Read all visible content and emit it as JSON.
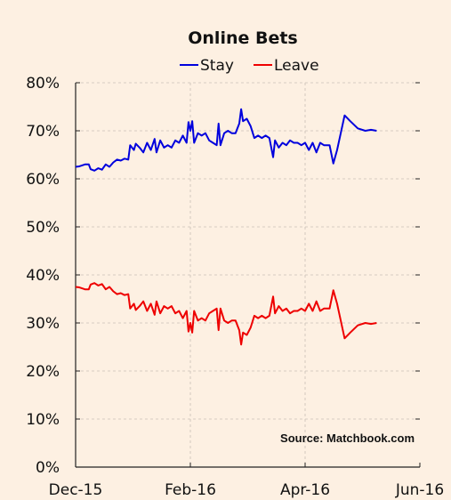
{
  "chart_data": {
    "type": "line",
    "title": "Online Bets",
    "annotation": "Source: Matchbook.com",
    "xlabel": "",
    "ylabel": "",
    "x_ticks": [
      "Dec-15",
      "Feb-16",
      "Apr-16",
      "Jun-16"
    ],
    "y_ticks": [
      "0%",
      "10%",
      "20%",
      "30%",
      "40%",
      "50%",
      "60%",
      "70%",
      "80%"
    ],
    "xlim": [
      "2015-12-01",
      "2016-06-01"
    ],
    "ylim": [
      0,
      80
    ],
    "grid": true,
    "legend_position": "top-center",
    "series": [
      {
        "name": "Stay",
        "color": "#0000dd",
        "points": [
          [
            "2015-12-01",
            62.5
          ],
          [
            "2015-12-03",
            62.6
          ],
          [
            "2015-12-06",
            63.0
          ],
          [
            "2015-12-08",
            63.0
          ],
          [
            "2015-12-09",
            62.0
          ],
          [
            "2015-12-11",
            61.7
          ],
          [
            "2015-12-13",
            62.2
          ],
          [
            "2015-12-15",
            61.9
          ],
          [
            "2015-12-17",
            63.0
          ],
          [
            "2015-12-19",
            62.5
          ],
          [
            "2015-12-21",
            63.4
          ],
          [
            "2015-12-23",
            64.0
          ],
          [
            "2015-12-25",
            63.8
          ],
          [
            "2015-12-27",
            64.2
          ],
          [
            "2015-12-29",
            64.0
          ],
          [
            "2015-12-30",
            67.0
          ],
          [
            "2016-01-01",
            66.0
          ],
          [
            "2016-01-02",
            67.3
          ],
          [
            "2016-01-04",
            66.5
          ],
          [
            "2016-01-06",
            65.5
          ],
          [
            "2016-01-08",
            67.5
          ],
          [
            "2016-01-10",
            66.0
          ],
          [
            "2016-01-12",
            68.3
          ],
          [
            "2016-01-13",
            65.5
          ],
          [
            "2016-01-15",
            68.0
          ],
          [
            "2016-01-17",
            66.5
          ],
          [
            "2016-01-19",
            67.0
          ],
          [
            "2016-01-21",
            66.5
          ],
          [
            "2016-01-23",
            68.0
          ],
          [
            "2016-01-25",
            67.5
          ],
          [
            "2016-01-27",
            69.0
          ],
          [
            "2016-01-29",
            67.5
          ],
          [
            "2016-01-30",
            71.8
          ],
          [
            "2016-01-31",
            70.0
          ],
          [
            "2016-02-01",
            72.0
          ],
          [
            "2016-02-02",
            67.5
          ],
          [
            "2016-02-04",
            69.5
          ],
          [
            "2016-02-06",
            69.0
          ],
          [
            "2016-02-08",
            69.5
          ],
          [
            "2016-02-10",
            68.0
          ],
          [
            "2016-02-12",
            67.5
          ],
          [
            "2016-02-14",
            67.0
          ],
          [
            "2016-02-15",
            71.5
          ],
          [
            "2016-02-16",
            67.0
          ],
          [
            "2016-02-18",
            69.5
          ],
          [
            "2016-02-20",
            70.0
          ],
          [
            "2016-02-22",
            69.5
          ],
          [
            "2016-02-24",
            69.5
          ],
          [
            "2016-02-26",
            71.5
          ],
          [
            "2016-02-27",
            74.5
          ],
          [
            "2016-02-28",
            72.0
          ],
          [
            "2016-03-01",
            72.5
          ],
          [
            "2016-03-03",
            71.0
          ],
          [
            "2016-03-05",
            68.5
          ],
          [
            "2016-03-07",
            69.0
          ],
          [
            "2016-03-09",
            68.5
          ],
          [
            "2016-03-11",
            69.0
          ],
          [
            "2016-03-13",
            68.5
          ],
          [
            "2016-03-15",
            64.5
          ],
          [
            "2016-03-16",
            68.0
          ],
          [
            "2016-03-18",
            66.5
          ],
          [
            "2016-03-20",
            67.5
          ],
          [
            "2016-03-22",
            67.0
          ],
          [
            "2016-03-24",
            68.0
          ],
          [
            "2016-03-26",
            67.5
          ],
          [
            "2016-03-28",
            67.5
          ],
          [
            "2016-03-30",
            67.0
          ],
          [
            "2016-04-01",
            67.5
          ],
          [
            "2016-04-03",
            66.0
          ],
          [
            "2016-04-05",
            67.5
          ],
          [
            "2016-04-07",
            65.5
          ],
          [
            "2016-04-09",
            67.5
          ],
          [
            "2016-04-11",
            67.0
          ],
          [
            "2016-04-14",
            67.0
          ],
          [
            "2016-04-16",
            63.2
          ],
          [
            "2016-04-18",
            66.0
          ],
          [
            "2016-04-22",
            73.2
          ],
          [
            "2016-04-25",
            72.0
          ],
          [
            "2016-04-29",
            70.5
          ],
          [
            "2016-05-03",
            70.0
          ],
          [
            "2016-05-06",
            70.2
          ],
          [
            "2016-05-09",
            70.0
          ]
        ]
      },
      {
        "name": "Leave",
        "color": "#ee0000",
        "points": [
          [
            "2015-12-01",
            37.5
          ],
          [
            "2015-12-03",
            37.4
          ],
          [
            "2015-12-06",
            37.0
          ],
          [
            "2015-12-08",
            37.0
          ],
          [
            "2015-12-09",
            38.0
          ],
          [
            "2015-12-11",
            38.3
          ],
          [
            "2015-12-13",
            37.8
          ],
          [
            "2015-12-15",
            38.1
          ],
          [
            "2015-12-17",
            37.0
          ],
          [
            "2015-12-19",
            37.5
          ],
          [
            "2015-12-21",
            36.6
          ],
          [
            "2015-12-23",
            36.0
          ],
          [
            "2015-12-25",
            36.2
          ],
          [
            "2015-12-27",
            35.8
          ],
          [
            "2015-12-29",
            36.0
          ],
          [
            "2015-12-30",
            33.0
          ],
          [
            "2016-01-01",
            34.0
          ],
          [
            "2016-01-02",
            32.7
          ],
          [
            "2016-01-04",
            33.5
          ],
          [
            "2016-01-06",
            34.5
          ],
          [
            "2016-01-08",
            32.5
          ],
          [
            "2016-01-10",
            34.0
          ],
          [
            "2016-01-12",
            31.7
          ],
          [
            "2016-01-13",
            34.5
          ],
          [
            "2016-01-15",
            32.0
          ],
          [
            "2016-01-17",
            33.5
          ],
          [
            "2016-01-19",
            33.0
          ],
          [
            "2016-01-21",
            33.5
          ],
          [
            "2016-01-23",
            32.0
          ],
          [
            "2016-01-25",
            32.5
          ],
          [
            "2016-01-27",
            31.0
          ],
          [
            "2016-01-29",
            32.5
          ],
          [
            "2016-01-30",
            28.2
          ],
          [
            "2016-01-31",
            30.0
          ],
          [
            "2016-02-01",
            28.0
          ],
          [
            "2016-02-02",
            32.5
          ],
          [
            "2016-02-04",
            30.5
          ],
          [
            "2016-02-06",
            31.0
          ],
          [
            "2016-02-08",
            30.5
          ],
          [
            "2016-02-10",
            32.0
          ],
          [
            "2016-02-12",
            32.5
          ],
          [
            "2016-02-14",
            33.0
          ],
          [
            "2016-02-15",
            28.5
          ],
          [
            "2016-02-16",
            33.0
          ],
          [
            "2016-02-18",
            30.5
          ],
          [
            "2016-02-20",
            30.0
          ],
          [
            "2016-02-22",
            30.5
          ],
          [
            "2016-02-24",
            30.5
          ],
          [
            "2016-02-26",
            28.5
          ],
          [
            "2016-02-27",
            25.5
          ],
          [
            "2016-02-28",
            28.0
          ],
          [
            "2016-03-01",
            27.5
          ],
          [
            "2016-03-03",
            29.0
          ],
          [
            "2016-03-05",
            31.5
          ],
          [
            "2016-03-07",
            31.0
          ],
          [
            "2016-03-09",
            31.5
          ],
          [
            "2016-03-11",
            31.0
          ],
          [
            "2016-03-13",
            31.5
          ],
          [
            "2016-03-15",
            35.5
          ],
          [
            "2016-03-16",
            32.0
          ],
          [
            "2016-03-18",
            33.5
          ],
          [
            "2016-03-20",
            32.5
          ],
          [
            "2016-03-22",
            33.0
          ],
          [
            "2016-03-24",
            32.0
          ],
          [
            "2016-03-26",
            32.5
          ],
          [
            "2016-03-28",
            32.5
          ],
          [
            "2016-03-30",
            33.0
          ],
          [
            "2016-04-01",
            32.5
          ],
          [
            "2016-04-03",
            34.0
          ],
          [
            "2016-04-05",
            32.5
          ],
          [
            "2016-04-07",
            34.5
          ],
          [
            "2016-04-09",
            32.5
          ],
          [
            "2016-04-11",
            33.0
          ],
          [
            "2016-04-14",
            33.0
          ],
          [
            "2016-04-16",
            36.8
          ],
          [
            "2016-04-18",
            34.0
          ],
          [
            "2016-04-22",
            26.8
          ],
          [
            "2016-04-25",
            28.0
          ],
          [
            "2016-04-29",
            29.5
          ],
          [
            "2016-05-03",
            30.0
          ],
          [
            "2016-05-06",
            29.8
          ],
          [
            "2016-05-09",
            30.0
          ]
        ]
      }
    ]
  }
}
